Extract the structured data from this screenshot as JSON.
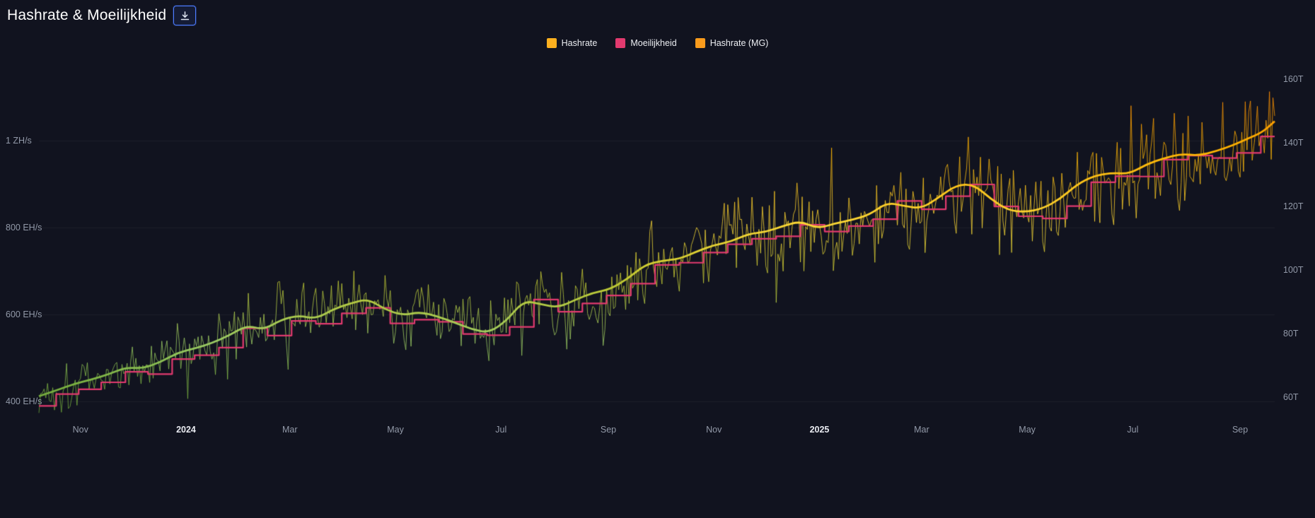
{
  "header": {
    "title": "Hashrate & Moeilijkheid"
  },
  "legend": {
    "items": [
      {
        "label": "Hashrate",
        "color": "#fcb01f"
      },
      {
        "label": "Moeilijkheid",
        "color": "#e23a6f"
      },
      {
        "label": "Hashrate (MG)",
        "color": "#f99b1c"
      }
    ]
  },
  "colors": {
    "background": "#11131f",
    "grid": "rgba(255,255,255,0.055)",
    "axis_text": "#9299a8",
    "year_text": "#e9ebf1",
    "difficulty_line": "#e23a6f"
  },
  "chart_data": {
    "type": "line",
    "title": "Hashrate & Moeilijkheid",
    "xlim_days": [
      0,
      714
    ],
    "x_axis": {
      "note": "day 0 = early Oct 2023, day 714 = late Sep 2025",
      "ticks": [
        {
          "day": 24,
          "label": "Nov",
          "bold": false
        },
        {
          "day": 85,
          "label": "2024",
          "bold": true
        },
        {
          "day": 145,
          "label": "Mar",
          "bold": false
        },
        {
          "day": 206,
          "label": "May",
          "bold": false
        },
        {
          "day": 267,
          "label": "Jul",
          "bold": false
        },
        {
          "day": 329,
          "label": "Sep",
          "bold": false
        },
        {
          "day": 390,
          "label": "Nov",
          "bold": false
        },
        {
          "day": 451,
          "label": "2025",
          "bold": true
        },
        {
          "day": 510,
          "label": "Mar",
          "bold": false
        },
        {
          "day": 571,
          "label": "May",
          "bold": false
        },
        {
          "day": 632,
          "label": "Jul",
          "bold": false
        },
        {
          "day": 694,
          "label": "Sep",
          "bold": false
        }
      ]
    },
    "left_axis": {
      "name": "hashrate",
      "unit": "EH/s",
      "range": [
        356,
        1186
      ],
      "ticks": [
        {
          "value": 400,
          "label": "400 EH/s"
        },
        {
          "value": 600,
          "label": "600 EH/s"
        },
        {
          "value": 800,
          "label": "800 EH/s"
        },
        {
          "value": 1000,
          "label": "1 ZH/s"
        }
      ]
    },
    "right_axis": {
      "name": "difficulty",
      "unit": "T",
      "range": [
        52.7,
        166
      ],
      "ticks": [
        {
          "value": 60,
          "label": "60T"
        },
        {
          "value": 80,
          "label": "80T"
        },
        {
          "value": 100,
          "label": "100T"
        },
        {
          "value": 120,
          "label": "120T"
        },
        {
          "value": 140,
          "label": "140T"
        },
        {
          "value": 160,
          "label": "160T"
        }
      ]
    },
    "gradient_stops": [
      [
        0,
        "#f4511e"
      ],
      [
        0.1,
        "#fb8c00"
      ],
      [
        0.24,
        "#ffb300"
      ],
      [
        0.45,
        "#fdd835"
      ],
      [
        0.62,
        "#c0ca33"
      ],
      [
        0.78,
        "#9ccc65"
      ],
      [
        0.9,
        "#7cb342"
      ],
      [
        1,
        "#689f38"
      ]
    ],
    "series": [
      {
        "name": "Hashrate",
        "style": "raw-noisy",
        "axis": "left",
        "derived_from": "Hashrate (MG)",
        "noise": {
          "seed": 1337,
          "amplitude": 0.15,
          "spike_chance": 0.05,
          "spike_mult": 1.8
        }
      },
      {
        "name": "Moeilijkheid",
        "style": "step",
        "axis": "right",
        "color": "#e23a6f",
        "points": [
          [
            0,
            57.3
          ],
          [
            10,
            61.0
          ],
          [
            23,
            62.5
          ],
          [
            36,
            64.7
          ],
          [
            50,
            68.0
          ],
          [
            63,
            67.3
          ],
          [
            77,
            72.0
          ],
          [
            90,
            73.2
          ],
          [
            104,
            75.6
          ],
          [
            118,
            81.7
          ],
          [
            132,
            79.4
          ],
          [
            146,
            84.0
          ],
          [
            160,
            83.1
          ],
          [
            175,
            86.4
          ],
          [
            189,
            88.1
          ],
          [
            203,
            83.2
          ],
          [
            217,
            84.4
          ],
          [
            231,
            83.7
          ],
          [
            245,
            79.9
          ],
          [
            259,
            79.5
          ],
          [
            272,
            82.1
          ],
          [
            286,
            90.7
          ],
          [
            300,
            86.9
          ],
          [
            314,
            89.5
          ],
          [
            328,
            92.0
          ],
          [
            342,
            95.7
          ],
          [
            356,
            101.6
          ],
          [
            370,
            102.3
          ],
          [
            384,
            105.5
          ],
          [
            398,
            108.1
          ],
          [
            412,
            109.8
          ],
          [
            426,
            110.6
          ],
          [
            440,
            114.2
          ],
          [
            454,
            112.1
          ],
          [
            468,
            113.8
          ],
          [
            482,
            116.0
          ],
          [
            496,
            121.7
          ],
          [
            510,
            119.1
          ],
          [
            524,
            123.2
          ],
          [
            538,
            126.9
          ],
          [
            552,
            120.0
          ],
          [
            566,
            116.9
          ],
          [
            580,
            116.2
          ],
          [
            594,
            120.1
          ],
          [
            608,
            127.6
          ],
          [
            622,
            129.5
          ],
          [
            636,
            129.4
          ],
          [
            650,
            134.7
          ],
          [
            664,
            136.0
          ],
          [
            678,
            135.2
          ],
          [
            692,
            136.8
          ],
          [
            706,
            142.0
          ]
        ]
      },
      {
        "name": "Hashrate (MG)",
        "style": "smooth",
        "axis": "left",
        "points": [
          [
            0,
            412
          ],
          [
            10,
            425
          ],
          [
            20,
            440
          ],
          [
            30,
            450
          ],
          [
            40,
            462
          ],
          [
            50,
            478
          ],
          [
            60,
            476
          ],
          [
            70,
            490
          ],
          [
            80,
            512
          ],
          [
            90,
            522
          ],
          [
            100,
            534
          ],
          [
            110,
            552
          ],
          [
            120,
            575
          ],
          [
            130,
            565
          ],
          [
            140,
            588
          ],
          [
            150,
            598
          ],
          [
            160,
            590
          ],
          [
            170,
            612
          ],
          [
            180,
            626
          ],
          [
            190,
            636
          ],
          [
            200,
            612
          ],
          [
            210,
            598
          ],
          [
            220,
            606
          ],
          [
            230,
            596
          ],
          [
            240,
            582
          ],
          [
            250,
            566
          ],
          [
            260,
            558
          ],
          [
            270,
            585
          ],
          [
            280,
            632
          ],
          [
            290,
            624
          ],
          [
            300,
            616
          ],
          [
            310,
            634
          ],
          [
            320,
            650
          ],
          [
            330,
            658
          ],
          [
            340,
            682
          ],
          [
            350,
            714
          ],
          [
            360,
            724
          ],
          [
            370,
            728
          ],
          [
            380,
            745
          ],
          [
            390,
            760
          ],
          [
            400,
            768
          ],
          [
            410,
            786
          ],
          [
            420,
            790
          ],
          [
            430,
            804
          ],
          [
            440,
            815
          ],
          [
            450,
            798
          ],
          [
            460,
            810
          ],
          [
            470,
            818
          ],
          [
            480,
            830
          ],
          [
            490,
            858
          ],
          [
            500,
            850
          ],
          [
            510,
            844
          ],
          [
            520,
            870
          ],
          [
            530,
            898
          ],
          [
            540,
            900
          ],
          [
            550,
            866
          ],
          [
            560,
            840
          ],
          [
            570,
            836
          ],
          [
            580,
            844
          ],
          [
            590,
            866
          ],
          [
            600,
            900
          ],
          [
            610,
            920
          ],
          [
            620,
            926
          ],
          [
            630,
            924
          ],
          [
            640,
            946
          ],
          [
            650,
            960
          ],
          [
            660,
            970
          ],
          [
            670,
            966
          ],
          [
            680,
            976
          ],
          [
            690,
            990
          ],
          [
            700,
            1008
          ],
          [
            707,
            1020
          ],
          [
            714,
            1045
          ]
        ]
      }
    ]
  }
}
